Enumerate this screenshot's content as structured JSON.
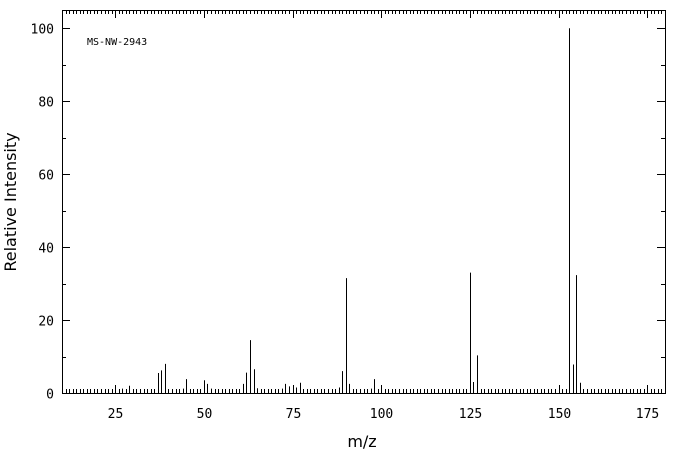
{
  "chart_data": {
    "type": "bar",
    "title": "",
    "annotation": "MS-NW-2943",
    "xlabel": "m/z",
    "ylabel": "Relative Intensity",
    "xlim": [
      10,
      180
    ],
    "ylim": [
      0,
      105
    ],
    "x_ticks": [
      25,
      50,
      75,
      100,
      125,
      150,
      175
    ],
    "y_ticks": [
      0,
      20,
      40,
      60,
      80,
      100
    ],
    "x_tick_labels": [
      "25",
      "50",
      "75",
      "100",
      "125",
      "150",
      "175"
    ],
    "y_tick_labels": [
      "0",
      "20",
      "40",
      "60",
      "80",
      "100"
    ],
    "grid": false,
    "series": [
      {
        "x": [
          26,
          27,
          28,
          29,
          36,
          37,
          38,
          39,
          41,
          42,
          43,
          44,
          45,
          46,
          48,
          49,
          50,
          51,
          52,
          53,
          55,
          56,
          57,
          60,
          61,
          62,
          63,
          64,
          65,
          67,
          69,
          72,
          73,
          74,
          75,
          76,
          77,
          78,
          86,
          87,
          88,
          89,
          90,
          91,
          96,
          97,
          98,
          99,
          125,
          126,
          127,
          153,
          154,
          155,
          156
        ],
        "values": [
          0.8,
          1.2,
          1.0,
          2.0,
          1.0,
          5.5,
          6.2,
          8.0,
          0.8,
          1.0,
          0.7,
          1.2,
          3.8,
          0.6,
          0.8,
          1.0,
          3.5,
          2.5,
          1.2,
          0.8,
          0.5,
          0.5,
          0.5,
          0.8,
          2.5,
          5.6,
          14.5,
          6.5,
          1.3,
          0.6,
          0.5,
          1.2,
          2.5,
          1.8,
          2.2,
          1.5,
          2.8,
          0.9,
          0.5,
          0.8,
          1.5,
          6.0,
          31.5,
          2.5,
          0.6,
          1.2,
          3.8,
          1.0,
          33.0,
          3.0,
          10.3,
          100,
          7.8,
          32.3,
          2.8
        ]
      }
    ]
  }
}
